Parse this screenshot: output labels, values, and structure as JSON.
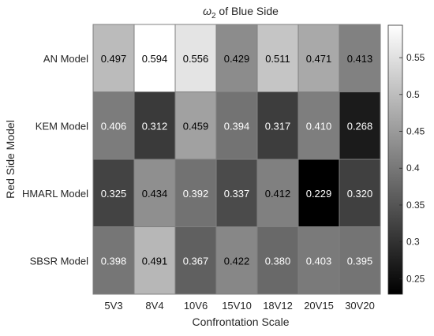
{
  "chart_data": {
    "type": "heatmap",
    "title": "ω2 of Blue Side",
    "title_main": "ω",
    "title_subscript": "2",
    "title_rest": " of Blue Side",
    "xlabel": "Confrontation Scale",
    "ylabel": "Red Side Model",
    "x_categories": [
      "5V3",
      "8V4",
      "10V6",
      "15V10",
      "18V12",
      "20V15",
      "30V20"
    ],
    "y_categories": [
      "AN Model",
      "KEM Model",
      "HMARL Model",
      "SBSR Model"
    ],
    "values": [
      [
        0.497,
        0.594,
        0.556,
        0.429,
        0.511,
        0.471,
        0.413
      ],
      [
        0.406,
        0.312,
        0.459,
        0.394,
        0.317,
        0.41,
        0.268
      ],
      [
        0.325,
        0.434,
        0.392,
        0.337,
        0.412,
        0.229,
        0.32
      ],
      [
        0.398,
        0.491,
        0.367,
        0.422,
        0.38,
        0.403,
        0.395
      ]
    ],
    "value_labels": [
      [
        "0.497",
        "0.594",
        "0.556",
        "0.429",
        "0.511",
        "0.471",
        "0.413"
      ],
      [
        "0.406",
        "0.312",
        "0.459",
        "0.394",
        "0.317",
        "0.410",
        "0.268"
      ],
      [
        "0.325",
        "0.434",
        "0.392",
        "0.337",
        "0.412",
        "0.229",
        "0.320"
      ],
      [
        "0.398",
        "0.491",
        "0.367",
        "0.422",
        "0.380",
        "0.403",
        "0.395"
      ]
    ],
    "colormap": "gray",
    "colorbar": {
      "range": [
        0.229,
        0.594
      ],
      "ticks": [
        0.25,
        0.3,
        0.35,
        0.4,
        0.45,
        0.5,
        0.55
      ],
      "tick_labels": [
        "0.25",
        "0.3",
        "0.35",
        "0.4",
        "0.45",
        "0.5",
        "0.55"
      ],
      "placement": "right"
    },
    "grid": false
  },
  "colors": {
    "cell_border": "#808080",
    "axis_text": "#262626",
    "light_text": "#ffffff",
    "dark_text": "#000000"
  }
}
